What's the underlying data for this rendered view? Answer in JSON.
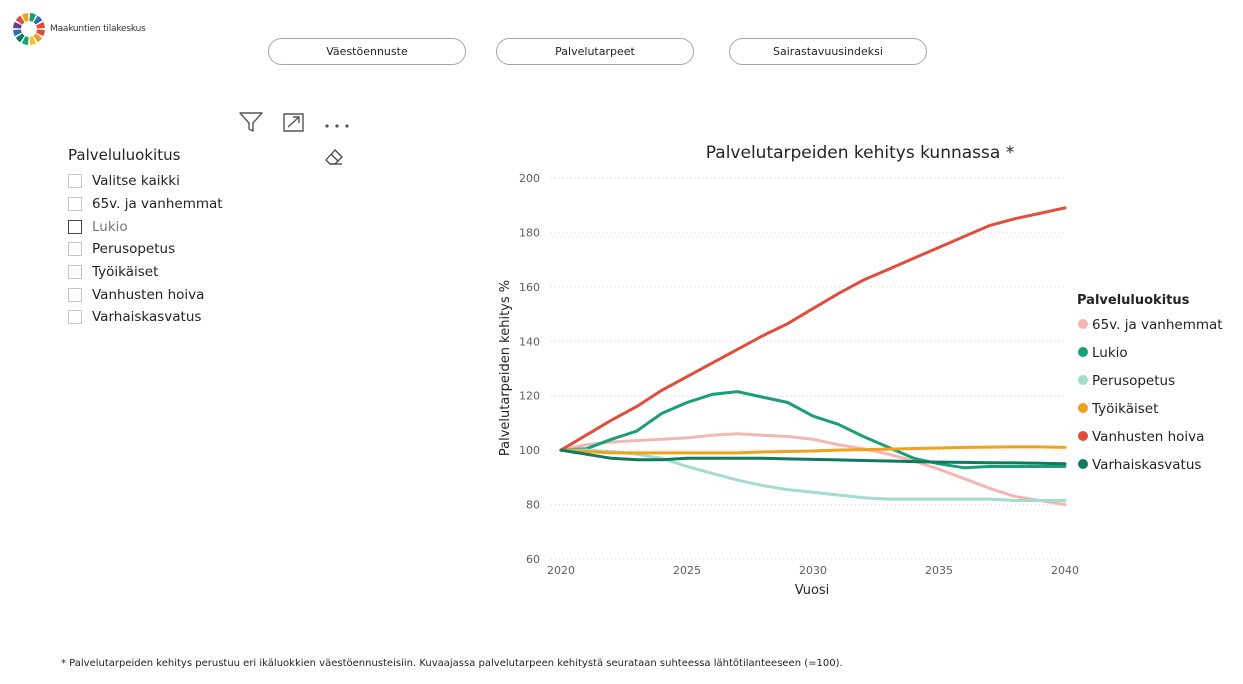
{
  "logo": {
    "text": "Maakuntien tilakeskus"
  },
  "nav": [
    {
      "label": "Väestöennuste"
    },
    {
      "label": "Palvelutarpeet"
    },
    {
      "label": "Sairastavuusindeksi"
    }
  ],
  "slicer": {
    "title": "Palveluluokitus",
    "items": [
      {
        "label": "Valitse kaikki"
      },
      {
        "label": "65v. ja vanhemmat"
      },
      {
        "label": "Lukio"
      },
      {
        "label": "Perusopetus"
      },
      {
        "label": "Työikäiset"
      },
      {
        "label": "Vanhusten hoiva"
      },
      {
        "label": "Varhaiskasvatus"
      }
    ]
  },
  "footnote": "* Palvelutarpeiden kehitys perustuu eri ikäluokkien väestöennusteisiin. Kuvaajassa palvelutarpeen kehitystä seurataan suhteessa lähtötilanteeseen (=100).",
  "chart_data": {
    "type": "line",
    "title": "Palvelutarpeiden kehitys kunnassa *",
    "xlabel": "Vuosi",
    "ylabel": "Palvelutarpeiden kehitys %",
    "xlim": [
      2020,
      2040
    ],
    "ylim": [
      60,
      200
    ],
    "xticks": [
      2020,
      2025,
      2030,
      2035,
      2040
    ],
    "yticks": [
      60,
      80,
      100,
      120,
      140,
      160,
      180,
      200
    ],
    "grid": "horizontal dotted",
    "legend_title": "Palveluluokitus",
    "legend_position": "right",
    "x": [
      2020,
      2021,
      2022,
      2023,
      2024,
      2025,
      2026,
      2027,
      2028,
      2029,
      2030,
      2031,
      2032,
      2033,
      2034,
      2035,
      2036,
      2037,
      2038,
      2039,
      2040
    ],
    "series": [
      {
        "name": "65v. ja vanhemmat",
        "color": "#F4B6B2",
        "values": [
          100,
          102,
          103,
          103.5,
          104,
          104.5,
          105.5,
          106,
          105.5,
          105,
          104,
          102,
          100.5,
          98.5,
          96,
          93,
          89.5,
          86,
          83,
          81.5,
          80
        ]
      },
      {
        "name": "Lukio",
        "color": "#1A9E7A",
        "values": [
          100,
          100.5,
          104,
          107,
          113.5,
          117.5,
          120.5,
          121.5,
          119.5,
          117.5,
          112.5,
          109.5,
          105,
          101,
          97,
          95,
          93.5,
          94,
          94,
          94,
          94
        ]
      },
      {
        "name": "Perusopetus",
        "color": "#A3DCD0",
        "values": [
          100,
          100,
          99.5,
          98.5,
          97,
          94,
          91.5,
          89,
          87,
          85.5,
          84.5,
          83.5,
          82.5,
          82,
          82,
          82,
          82,
          82,
          81.5,
          81.5,
          81.5
        ]
      },
      {
        "name": "Työikäiset",
        "color": "#F0A11E",
        "values": [
          100,
          99.5,
          99,
          99,
          99,
          99,
          99,
          99,
          99.3,
          99.5,
          99.7,
          100,
          100.2,
          100.4,
          100.6,
          100.8,
          101,
          101.1,
          101.2,
          101.2,
          101
        ]
      },
      {
        "name": "Vanhusten hoiva",
        "color": "#E04E3B",
        "values": [
          100,
          105.5,
          111,
          116,
          122,
          127,
          132,
          137,
          142,
          146.5,
          152,
          157.5,
          162.5,
          166.5,
          170.5,
          174.5,
          178.5,
          182.5,
          185,
          187,
          189
        ]
      },
      {
        "name": "Varhaiskasvatus",
        "color": "#127A5C",
        "values": [
          100,
          98.5,
          97,
          96.5,
          96.5,
          97,
          97,
          97,
          97,
          96.8,
          96.6,
          96.4,
          96.2,
          96,
          95.8,
          95.6,
          95.5,
          95.4,
          95.3,
          95.2,
          95
        ]
      }
    ]
  }
}
